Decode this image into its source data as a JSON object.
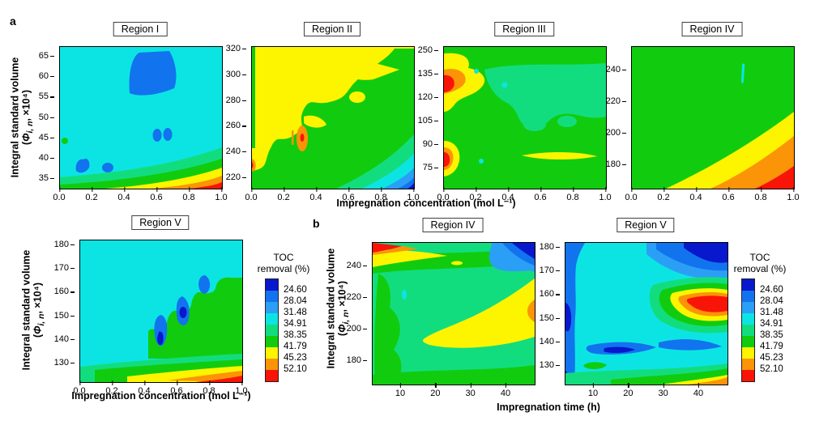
{
  "figure": {
    "panel_a_label": "a",
    "panel_b_label": "b"
  },
  "axis": {
    "ylabel_line1": "Integral standard volume",
    "ylabel_paren": "(",
    "ylabel_phi": "Φ",
    "ylabel_sub": "i, n",
    "ylabel_close": ", ×10⁴)",
    "xlabel_conc": "Impregnation concentration (mol L⁻¹)",
    "xlabel_time": "Impregnation time (h)"
  },
  "palette": {
    "c1": "#0718cd",
    "c2": "#1273ee",
    "c3": "#2b9ff5",
    "c4": "#0ce4e4",
    "c5": "#12dd7e",
    "c6": "#11cc0e",
    "c7": "#fdf400",
    "c8": "#fb9406",
    "c9": "#f91408"
  },
  "legend": {
    "title_line1": "TOC",
    "title_line2": "removal (%)",
    "labels": [
      "24.60",
      "28.04",
      "31.48",
      "34.91",
      "38.35",
      "41.79",
      "45.23",
      "52.10"
    ]
  },
  "plots": {
    "a_r1": {
      "title": "Region I",
      "yticks": {
        "values": [
          "65",
          "60",
          "55",
          "50",
          "45",
          "40",
          "35"
        ],
        "pads": [
          12,
          12
        ]
      },
      "xticks": {
        "values": [
          "0.0",
          "0.2",
          "0.4",
          "0.6",
          "0.8",
          "1.0"
        ],
        "pads": [
          0,
          0
        ]
      }
    },
    "a_r2": {
      "title": "Region II",
      "yticks": {
        "values": [
          "320",
          "300",
          "280",
          "260",
          "240",
          "220"
        ],
        "pads": [
          3,
          13
        ]
      },
      "xticks": {
        "values": [
          "0.0",
          "0.2",
          "0.4",
          "0.6",
          "0.8",
          "1.0"
        ],
        "pads": [
          0,
          0
        ]
      }
    },
    "a_r3": {
      "title": "Region III",
      "yticks": {
        "values": [
          "250",
          "135",
          "120",
          "105",
          "90",
          "75"
        ],
        "pads": [
          5,
          25
        ]
      },
      "xticks": {
        "values": [
          "0.0",
          "0.2",
          "0.4",
          "0.6",
          "0.8",
          "1.0"
        ],
        "pads": [
          0,
          0
        ]
      }
    },
    "a_r4": {
      "title": "Region IV",
      "yticks": {
        "values": [
          "240",
          "220",
          "200",
          "180"
        ],
        "pads": [
          29,
          29
        ]
      },
      "xticks": {
        "values": [
          "0.0",
          "0.2",
          "0.4",
          "0.6",
          "0.8",
          "1.0"
        ],
        "pads": [
          0,
          0
        ]
      }
    },
    "a_r5": {
      "title": "Region V",
      "yticks": {
        "values": [
          "180",
          "170",
          "160",
          "150",
          "140",
          "130"
        ],
        "pads": [
          6,
          23
        ]
      },
      "xticks": {
        "values": [
          "0.0",
          "0.2",
          "0.4",
          "0.6",
          "0.8",
          "1.0"
        ],
        "pads": [
          0,
          0
        ]
      }
    },
    "b_r4": {
      "title": "Region IV",
      "yticks": {
        "values": [
          "240",
          "220",
          "200",
          "180"
        ],
        "pads": [
          29,
          29
        ]
      },
      "xticks": {
        "values": [
          "10",
          "20",
          "30",
          "40"
        ],
        "pads": [
          35,
          35
        ]
      }
    },
    "b_r5": {
      "title": "Region V",
      "yticks": {
        "values": [
          "180",
          "170",
          "160",
          "150",
          "140",
          "130"
        ],
        "pads": [
          6,
          23
        ]
      },
      "xticks": {
        "values": [
          "10",
          "20",
          "30",
          "40"
        ],
        "pads": [
          35,
          35
        ]
      }
    }
  },
  "chart_data": [
    {
      "panel": "a",
      "title": "Region I",
      "type": "filled_contour",
      "x": {
        "label": "Impregnation concentration (mol L⁻¹)",
        "range": [
          0.0,
          1.0
        ],
        "ticks": [
          0.0,
          0.2,
          0.4,
          0.6,
          0.8,
          1.0
        ]
      },
      "y": {
        "label": "Integral standard volume (Φi,n, ×10⁴)",
        "ticks": [
          35,
          40,
          45,
          50,
          55,
          60,
          65
        ]
      },
      "levels_pct": [
        24.6,
        28.04,
        31.48,
        34.91,
        38.35,
        41.79,
        45.23,
        52.1
      ],
      "features": [
        "cyan (31.5–34.9%) background",
        "large blue lobe at x 0.42–0.72, Φ 56–66",
        "small blue spots near (0.60,46),(0.66,46),(0.13,39),(0.30,39)",
        "green dot at left edge Φ≈44",
        "green→yellow→orange→red bands toward bottom-right corner"
      ]
    },
    {
      "panel": "a",
      "title": "Region II",
      "type": "filled_contour",
      "x": {
        "label": "Impregnation concentration (mol L⁻¹)",
        "range": [
          0.0,
          1.0
        ],
        "ticks": [
          0.0,
          0.2,
          0.4,
          0.6,
          0.8,
          1.0
        ]
      },
      "y": {
        "label": "Integral standard volume (Φi,n, ×10⁴)",
        "ticks": [
          220,
          240,
          260,
          280,
          300,
          320
        ]
      },
      "levels_pct": [
        24.6,
        28.04,
        31.48,
        34.91,
        38.35,
        41.79,
        45.23,
        52.1
      ],
      "features": [
        "yellow (41.8–45.2%) over upper-left",
        "green (38.4–41.8%) lower-right with wavy boundary",
        "orange peak ≈52% near (0.30,250)",
        "small orange spot at left edge Φ≈230",
        "mint→cyan→blue→dark-blue bands in bottom-right corner"
      ]
    },
    {
      "panel": "a",
      "title": "Region III",
      "type": "filled_contour",
      "x": {
        "label": "Impregnation concentration (mol L⁻¹)",
        "range": [
          0.0,
          1.0
        ],
        "ticks": [
          0.0,
          0.2,
          0.4,
          0.6,
          0.8,
          1.0
        ]
      },
      "y": {
        "label": "Integral standard volume (Φi,n, ×10⁴)",
        "ticks": [
          75,
          90,
          105,
          120,
          135,
          250
        ]
      },
      "levels_pct": [
        24.6,
        28.04,
        31.48,
        34.91,
        38.35,
        41.79,
        45.23,
        52.1
      ],
      "features": [
        "green background",
        "mint (34.9–38.4%) plateau upper-right",
        "red hot spot ≈52% at left edge Φ≈118–126 ringed by orange and yellow",
        "second red hot spot at left edge Φ≈82",
        "thin yellow lens at Φ≈83 spanning x 0.47–0.93",
        "yellow band along top-left edge",
        "tiny cyan dots near (0.2,140),(0.37,122),(0.23,80)"
      ]
    },
    {
      "panel": "a",
      "title": "Region IV",
      "type": "filled_contour",
      "x": {
        "label": "Impregnation concentration (mol L⁻¹)",
        "range": [
          0.0,
          1.0
        ],
        "ticks": [
          0.0,
          0.2,
          0.4,
          0.6,
          0.8,
          1.0
        ]
      },
      "y": {
        "label": "Integral standard volume (Φi,n, ×10⁴)",
        "ticks": [
          180,
          200,
          220,
          240
        ]
      },
      "levels_pct": [
        24.6,
        28.04,
        31.48,
        34.91,
        38.35,
        41.79,
        45.23,
        52.1
      ],
      "features": [
        "green background",
        "diagonal yellow→orange→red bands rising toward bottom-right corner (max ≈52% at x=1, Φ≈168)",
        "tiny cyan streak near (0.68, Φ 238–245)"
      ]
    },
    {
      "panel": "a",
      "title": "Region V",
      "type": "filled_contour",
      "x": {
        "label": "Impregnation concentration (mol L⁻¹)",
        "range": [
          0.0,
          1.0
        ],
        "ticks": [
          0.0,
          0.2,
          0.4,
          0.6,
          0.8,
          1.0
        ]
      },
      "y": {
        "label": "Integral standard volume (Φi,n, ×10⁴)",
        "ticks": [
          130,
          140,
          150,
          160,
          170,
          180
        ]
      },
      "levels_pct": [
        24.6,
        28.04,
        31.48,
        34.91,
        38.35,
        41.79,
        45.23,
        52.1
      ],
      "features": [
        "cyan background",
        "green plateau for x>0.45, Φ≈133–166 with stepped edge",
        "blue low-TOC teardrops at (0.50,Φ142),(0.63,Φ152),(0.77,Φ163) with dark-blue cores",
        "mint→green→yellow→orange→red bands along bottom edge toward x=1"
      ]
    },
    {
      "panel": "b",
      "title": "Region IV",
      "type": "filled_contour",
      "x": {
        "label": "Impregnation time (h)",
        "range": [
          2,
          48
        ],
        "ticks": [
          10,
          20,
          30,
          40
        ]
      },
      "y": {
        "label": "Integral standard volume (Φi,n, ×10⁴)",
        "ticks": [
          180,
          200,
          220,
          240
        ]
      },
      "levels_pct": [
        24.6,
        28.04,
        31.48,
        34.91,
        38.35,
        41.79,
        45.23,
        52.1
      ],
      "features": [
        "mint/green background",
        "yellow ridge ≈45% for t>22, Φ≈200–235 with orange maximum at right edge Φ≈215",
        "red + yellow wedge in top-left corner",
        "dark-blue wedge in top-right corner",
        "green bands along left edge, top and bottom",
        "tiny cyan sliver near (11,Φ222) and yellow sliver near (26,Φ242)"
      ]
    },
    {
      "panel": "b",
      "title": "Region V",
      "type": "filled_contour",
      "x": {
        "label": "Impregnation time (h)",
        "range": [
          2,
          48
        ],
        "ticks": [
          10,
          20,
          30,
          40
        ]
      },
      "y": {
        "label": "Integral standard volume (Φi,n, ×10⁴)",
        "ticks": [
          130,
          140,
          150,
          160,
          170,
          180
        ]
      },
      "levels_pct": [
        24.6,
        28.04,
        31.48,
        34.91,
        38.35,
        41.79,
        45.23,
        52.1
      ],
      "features": [
        "cyan background",
        "blue band along left edge with dark-blue cores",
        "blue wedge in top-right corner with dark-blue core",
        "red maximum ≈52% at t≈35–48, Φ≈145–158 ringed by orange, yellow, green and mint",
        "blue streaks near Φ≈135 for t≈12–42",
        "small green blob near (10,Φ130)",
        "mint→green→yellow→orange bands along bottom edge"
      ]
    }
  ]
}
